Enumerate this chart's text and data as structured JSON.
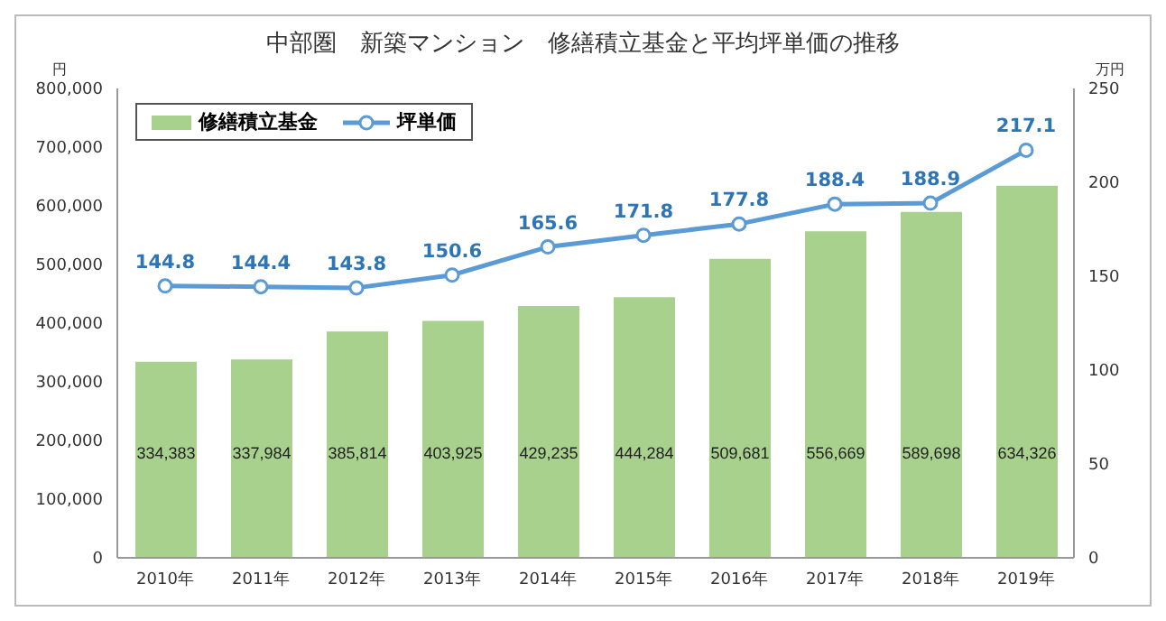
{
  "chart_data": {
    "type": "bar",
    "title": "中部圏　新築マンション　修繕積立基金と平均坪単価の推移",
    "ylabel": "円",
    "y2label": "万円",
    "categories": [
      "2010年",
      "2011年",
      "2012年",
      "2013年",
      "2014年",
      "2015年",
      "2016年",
      "2017年",
      "2018年",
      "2019年"
    ],
    "series": [
      {
        "name": "修繕積立基金",
        "color": "#a9d18e",
        "values": [
          334383,
          337984,
          385814,
          403925,
          429235,
          444284,
          509681,
          556669,
          589698,
          634326
        ],
        "value_labels": [
          "334,383",
          "337,984",
          "385,814",
          "403,925",
          "429,235",
          "444,284",
          "509,681",
          "556,669",
          "589,698",
          "634,326"
        ]
      },
      {
        "name": "坪単価",
        "type": "line",
        "axis": "y2",
        "color": "#5b9bd5",
        "values": [
          144.8,
          144.4,
          143.8,
          150.6,
          165.6,
          171.8,
          177.8,
          188.4,
          188.9,
          217.1
        ]
      }
    ],
    "ylim": [
      0,
      800000
    ],
    "yticks": [
      {
        "value": 0,
        "label": "0"
      },
      {
        "value": 100000,
        "label": "100,000"
      },
      {
        "value": 200000,
        "label": "200,000"
      },
      {
        "value": 300000,
        "label": "300,000"
      },
      {
        "value": 400000,
        "label": "400,000"
      },
      {
        "value": 500000,
        "label": "500,000"
      },
      {
        "value": 600000,
        "label": "600,000"
      },
      {
        "value": 700000,
        "label": "700,000"
      },
      {
        "value": 800000,
        "label": "800,000"
      }
    ],
    "y2lim": [
      0,
      250
    ],
    "y2ticks": [
      0,
      50,
      100,
      150,
      200,
      250
    ],
    "data_labels": true,
    "legend": "top left",
    "marker": "circle",
    "grid": false
  }
}
